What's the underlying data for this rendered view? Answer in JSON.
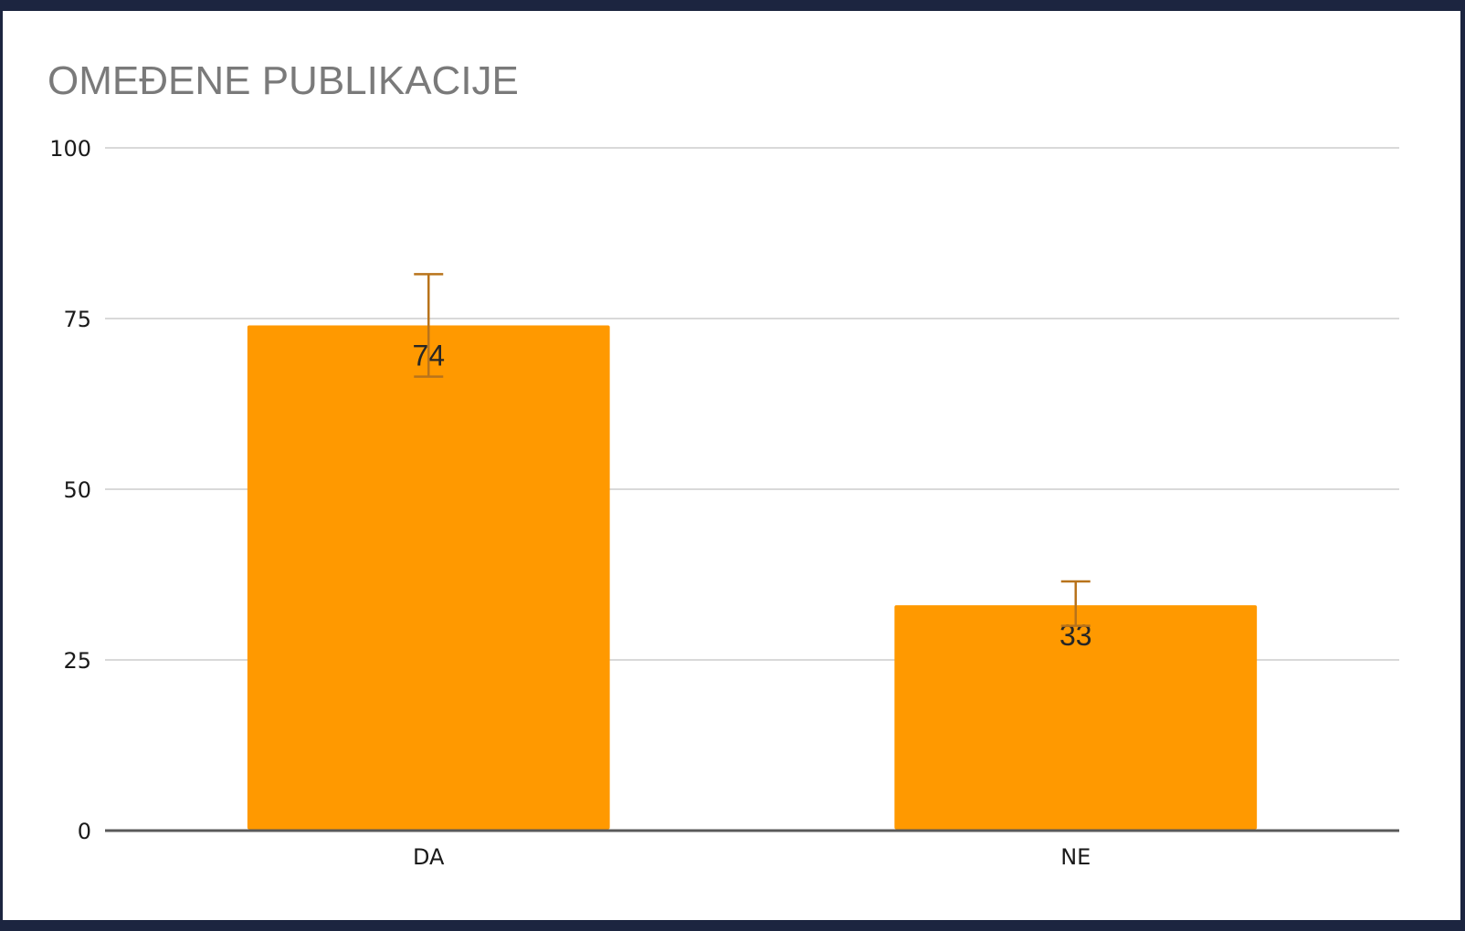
{
  "chart_data": {
    "type": "bar",
    "title": "OMEĐENE PUBLIKACIJE",
    "xlabel": "",
    "ylabel": "",
    "categories": [
      "DA",
      "NE"
    ],
    "values": [
      74,
      33
    ],
    "error_bars": [
      {
        "category": "DA",
        "upper": 81.5,
        "lower": 66.5
      },
      {
        "category": "NE",
        "upper": 36.5,
        "lower": 30
      }
    ],
    "data_labels": [
      "74",
      "33"
    ],
    "ylim": [
      0,
      100
    ],
    "yticks": [
      "0",
      "25",
      "50",
      "75",
      "100"
    ],
    "grid": true,
    "legend": "none",
    "bar_color": "#ff9900",
    "error_bar_color": "#b8731b",
    "gridline_color": "#d9d9d9",
    "axis_color": "#595959"
  }
}
